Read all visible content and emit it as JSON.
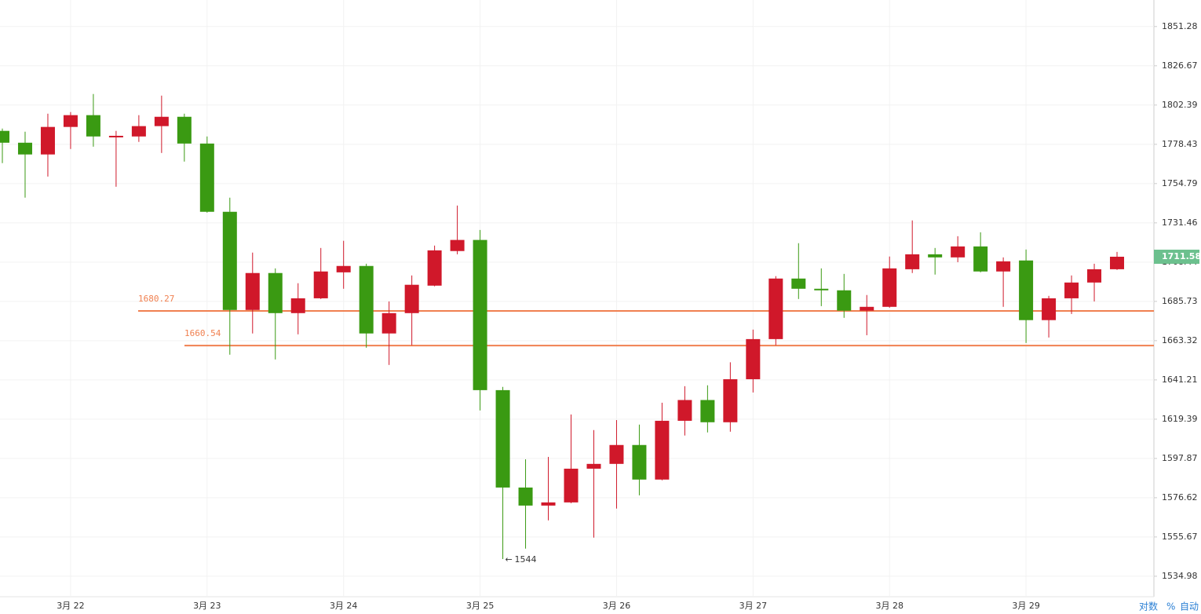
{
  "chart_data": {
    "type": "candlestick",
    "categories": [
      null,
      null,
      null,
      "3月 22",
      null,
      null,
      null,
      null,
      null,
      "3月 23",
      null,
      null,
      null,
      null,
      null,
      "3月 24",
      null,
      null,
      null,
      null,
      null,
      "3月 25",
      null,
      null,
      null,
      null,
      null,
      "3月 26",
      null,
      null,
      null,
      null,
      null,
      "3月 27",
      null,
      null,
      null,
      null,
      null,
      "3月 28",
      null,
      null,
      null,
      null,
      null,
      "3月 29",
      null,
      null,
      null,
      null
    ],
    "open": [
      1786.6,
      1779.4,
      1772.3,
      1789.0,
      1796.2,
      1782.7,
      1783.2,
      1789.5,
      1795.2,
      1778.9,
      1738.0,
      1680.8,
      1702.1,
      1679.0,
      1687.5,
      1702.5,
      1706.2,
      1667.4,
      1679.0,
      1694.8,
      1714.9,
      1721.4,
      1635.5,
      1582.1,
      1572.4,
      1574.1,
      1592.3,
      1594.9,
      1605.2,
      1586.4,
      1618.5,
      1630.0,
      1617.7,
      1641.6,
      1664.2,
      1698.9,
      1693.0,
      1692.1,
      1680.4,
      1682.6,
      1704.3,
      1713.0,
      1711.2,
      1717.6,
      1703.0,
      1709.4,
      1675.0,
      1687.5,
      1696.6,
      1704.3
    ],
    "high": [
      1788.0,
      1786.1,
      1797.1,
      1798.1,
      1809.2,
      1786.6,
      1796.2,
      1808.2,
      1797.1,
      1783.2,
      1746.4,
      1714.0,
      1704.8,
      1696.2,
      1716.7,
      1720.9,
      1707.5,
      1685.7,
      1700.7,
      1718.1,
      1741.7,
      1727.3,
      1637.3,
      1597.4,
      1598.7,
      1622.0,
      1613.4,
      1618.9,
      1616.4,
      1628.5,
      1637.7,
      1638.2,
      1651.1,
      1669.6,
      1700.3,
      1719.5,
      1704.8,
      1701.6,
      1689.4,
      1711.7,
      1732.9,
      1716.7,
      1723.6,
      1725.9,
      1711.2,
      1715.8,
      1688.9,
      1700.7,
      1707.5,
      1714.4
    ],
    "low": [
      1767.1,
      1746.4,
      1759.0,
      1775.6,
      1777.0,
      1752.9,
      1779.9,
      1773.2,
      1768.0,
      1737.5,
      1655.4,
      1667.4,
      1652.7,
      1666.9,
      1687.1,
      1693.0,
      1659.3,
      1649.6,
      1660.7,
      1694.4,
      1713.0,
      1624.2,
      1544,
      1549.5,
      1564.5,
      1573.7,
      1555.3,
      1570.8,
      1577.9,
      1586.0,
      1610.4,
      1612.1,
      1612.5,
      1634.2,
      1660.7,
      1687.1,
      1683.0,
      1676.3,
      1666.4,
      1682.1,
      1702.1,
      1701.2,
      1708.4,
      1702.5,
      1682.6,
      1662.0,
      1665.1,
      1678.5,
      1685.7,
      1703.9
    ],
    "close": [
      1779.4,
      1772.3,
      1789.0,
      1796.2,
      1783.2,
      1783.6,
      1789.5,
      1795.2,
      1778.9,
      1738.0,
      1680.8,
      1702.1,
      1679.0,
      1687.5,
      1703.0,
      1706.2,
      1667.4,
      1679.0,
      1695.3,
      1715.3,
      1721.4,
      1635.5,
      1582.1,
      1572.4,
      1574.1,
      1592.3,
      1594.9,
      1605.2,
      1586.4,
      1618.5,
      1630.0,
      1617.7,
      1641.6,
      1664.2,
      1698.9,
      1693.0,
      1692.1,
      1680.4,
      1682.6,
      1704.8,
      1713.0,
      1711.2,
      1717.6,
      1703.0,
      1708.9,
      1675.0,
      1687.5,
      1696.6,
      1704.3,
      1711.58
    ],
    "up_color": "#d0182a",
    "down_color": "#3a9a12",
    "log_scale": true,
    "grid": true,
    "ylim": [
      1524.3,
      1868.1
    ],
    "yticks": [
      1534.98,
      1555.67,
      1576.62,
      1597.87,
      1619.39,
      1641.21,
      1663.32,
      1685.73,
      1708.44,
      1731.46,
      1754.79,
      1778.43,
      1802.39,
      1826.67,
      1851.28
    ],
    "hlines": [
      {
        "value": 1680.27,
        "color": "#f08050"
      },
      {
        "value": 1660.54,
        "color": "#f08050"
      }
    ],
    "last_price_color": "#6cc08e"
  },
  "toolbar": [
    "对数",
    "%",
    "自动"
  ]
}
